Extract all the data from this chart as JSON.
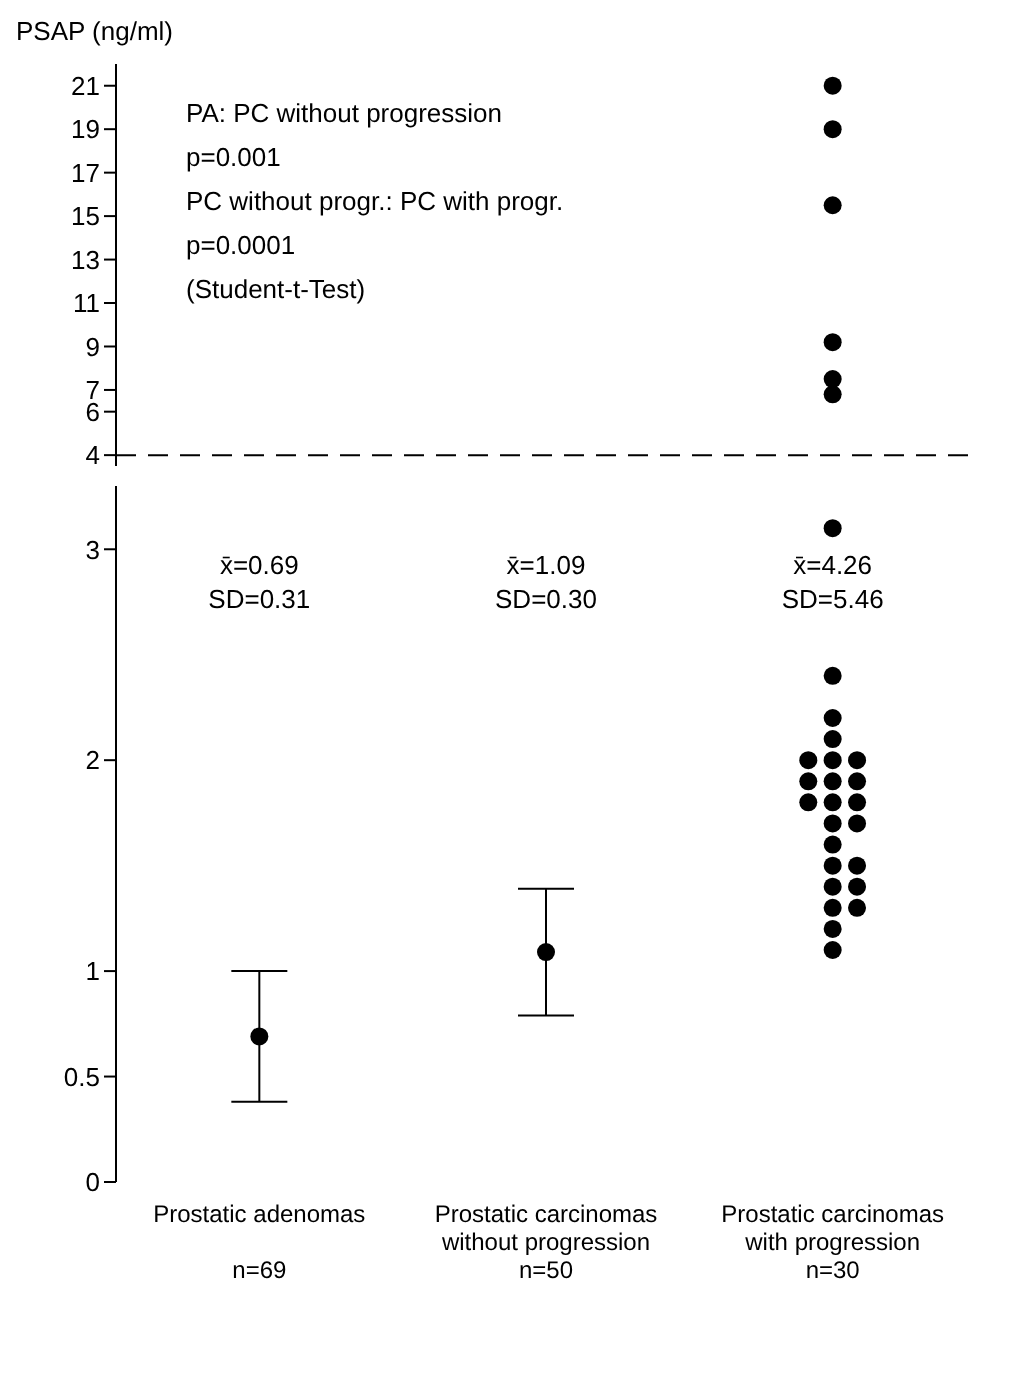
{
  "chart_data": [
    {
      "type": "scatter",
      "ylabel": "PSAP (ng/ml)",
      "categories": [
        "Prostatic adenomas\n\nn=69",
        "Prostatic carcinomas\nwithout progression\nn=50",
        "Prostatic carcinomas\nwith progression\nn=30"
      ],
      "ylim": [
        3.5,
        22
      ],
      "yticks": [
        4,
        6,
        7,
        9,
        11,
        13,
        15,
        17,
        19,
        21
      ],
      "tick_labels": "y",
      "marker": "circle",
      "ref_lines": [
        {
          "axis": "y",
          "value": 4,
          "line_style": "dashed"
        }
      ],
      "annotations": [
        "PA: PC without progression",
        "p=0.001",
        "PC without progr.: PC with progr.",
        "p=0.0001",
        "(Student-t-Test)"
      ],
      "series": [
        {
          "color": "#000000",
          "x": [
            "Prostatic carcinomas\nwith progression\nn=30",
            "Prostatic carcinomas\nwith progression\nn=30",
            "Prostatic carcinomas\nwith progression\nn=30",
            "Prostatic carcinomas\nwith progression\nn=30",
            "Prostatic carcinomas\nwith progression\nn=30",
            "Prostatic carcinomas\nwith progression\nn=30"
          ],
          "values": [
            21,
            19,
            15.5,
            9.2,
            7.5,
            6.8
          ]
        }
      ]
    },
    {
      "type": "scatter",
      "categories": [
        "Prostatic adenomas\n\nn=69",
        "Prostatic carcinomas\nwithout progression\nn=50",
        "Prostatic carcinomas\nwith progression\nn=30"
      ],
      "ylim": [
        0,
        3.3
      ],
      "yticks": [
        0,
        0.5,
        1,
        2,
        3
      ],
      "marker": "circle",
      "annotations": [
        "x̄=0.69\nSD=0.31",
        "x̄=1.09\nSD=0.30",
        "x̄=4.26\nSD=5.46"
      ],
      "series": [
        {
          "color": "#000000",
          "x": [
            "Prostatic adenomas\n\nn=69",
            "Prostatic carcinomas\nwithout progression\nn=50"
          ],
          "values": [
            0.69,
            1.09
          ],
          "errors": [
            0.31,
            0.3
          ]
        },
        {
          "color": "#000000",
          "x": [
            "Prostatic carcinomas\nwith progression\nn=30",
            "Prostatic carcinomas\nwith progression\nn=30",
            "Prostatic carcinomas\nwith progression\nn=30",
            "Prostatic carcinomas\nwith progression\nn=30",
            "Prostatic carcinomas\nwith progression\nn=30",
            "Prostatic carcinomas\nwith progression\nn=30",
            "Prostatic carcinomas\nwith progression\nn=30",
            "Prostatic carcinomas\nwith progression\nn=30",
            "Prostatic carcinomas\nwith progression\nn=30",
            "Prostatic carcinomas\nwith progression\nn=30",
            "Prostatic carcinomas\nwith progression\nn=30",
            "Prostatic carcinomas\nwith progression\nn=30",
            "Prostatic carcinomas\nwith progression\nn=30",
            "Prostatic carcinomas\nwith progression\nn=30",
            "Prostatic carcinomas\nwith progression\nn=30",
            "Prostatic carcinomas\nwith progression\nn=30",
            "Prostatic carcinomas\nwith progression\nn=30",
            "Prostatic carcinomas\nwith progression\nn=30",
            "Prostatic carcinomas\nwith progression\nn=30",
            "Prostatic carcinomas\nwith progression\nn=30",
            "Prostatic carcinomas\nwith progression\nn=30",
            "Prostatic carcinomas\nwith progression\nn=30",
            "Prostatic carcinomas\nwith progression\nn=30",
            "Prostatic carcinomas\nwith progression\nn=30"
          ],
          "values": [
            1.1,
            1.2,
            1.3,
            1.3,
            1.4,
            1.4,
            1.5,
            1.5,
            1.6,
            1.7,
            1.7,
            1.8,
            1.8,
            1.8,
            1.9,
            1.9,
            1.9,
            2.0,
            2.0,
            2.0,
            2.1,
            2.2,
            2.4,
            3.1
          ]
        }
      ]
    }
  ]
}
